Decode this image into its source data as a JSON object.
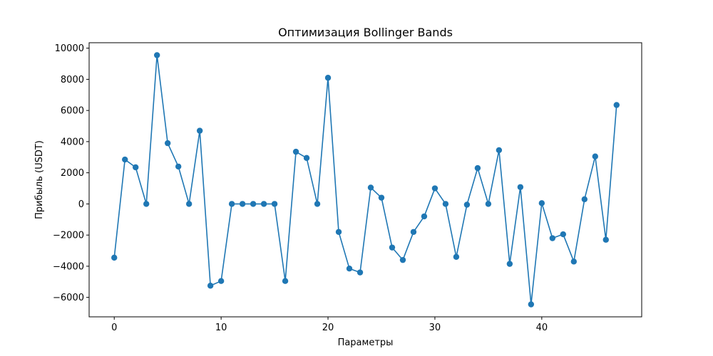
{
  "chart_data": {
    "type": "line",
    "title": "Оптимизация Bollinger Bands",
    "xlabel": "Параметры",
    "ylabel": "Прибыль (USDT)",
    "xlim": [
      -2.35,
      49.35
    ],
    "ylim": [
      -7250,
      10350
    ],
    "x_ticks": [
      0,
      10,
      20,
      30,
      40
    ],
    "x_tick_labels": [
      "0",
      "10",
      "20",
      "30",
      "40"
    ],
    "y_ticks": [
      -6000,
      -4000,
      -2000,
      0,
      2000,
      4000,
      6000,
      8000,
      10000
    ],
    "y_tick_labels": [
      "−6000",
      "−4000",
      "−2000",
      "0",
      "2000",
      "4000",
      "6000",
      "8000",
      "10000"
    ],
    "grid": false,
    "series": [
      {
        "color": "#1f77b4",
        "marker": "circle",
        "x": [
          0,
          1,
          2,
          3,
          4,
          5,
          6,
          7,
          8,
          9,
          10,
          11,
          12,
          13,
          14,
          15,
          16,
          17,
          18,
          19,
          20,
          21,
          22,
          23,
          24,
          25,
          26,
          27,
          28,
          29,
          30,
          31,
          32,
          33,
          34,
          35,
          36,
          37,
          38,
          39,
          40,
          41,
          42,
          43,
          44,
          45,
          46,
          47
        ],
        "values": [
          -3450,
          2850,
          2350,
          0,
          9550,
          3900,
          2400,
          0,
          4700,
          -5250,
          -4950,
          0,
          0,
          0,
          0,
          0,
          -4950,
          3350,
          2950,
          0,
          8100,
          -1800,
          -4150,
          -4400,
          1050,
          400,
          -2800,
          -3600,
          -1800,
          -800,
          1000,
          0,
          -3400,
          -50,
          2300,
          0,
          3450,
          -3850,
          1080,
          -6450,
          50,
          -2200,
          -1950,
          -3700,
          300,
          3050,
          -2300,
          6350
        ]
      }
    ]
  }
}
